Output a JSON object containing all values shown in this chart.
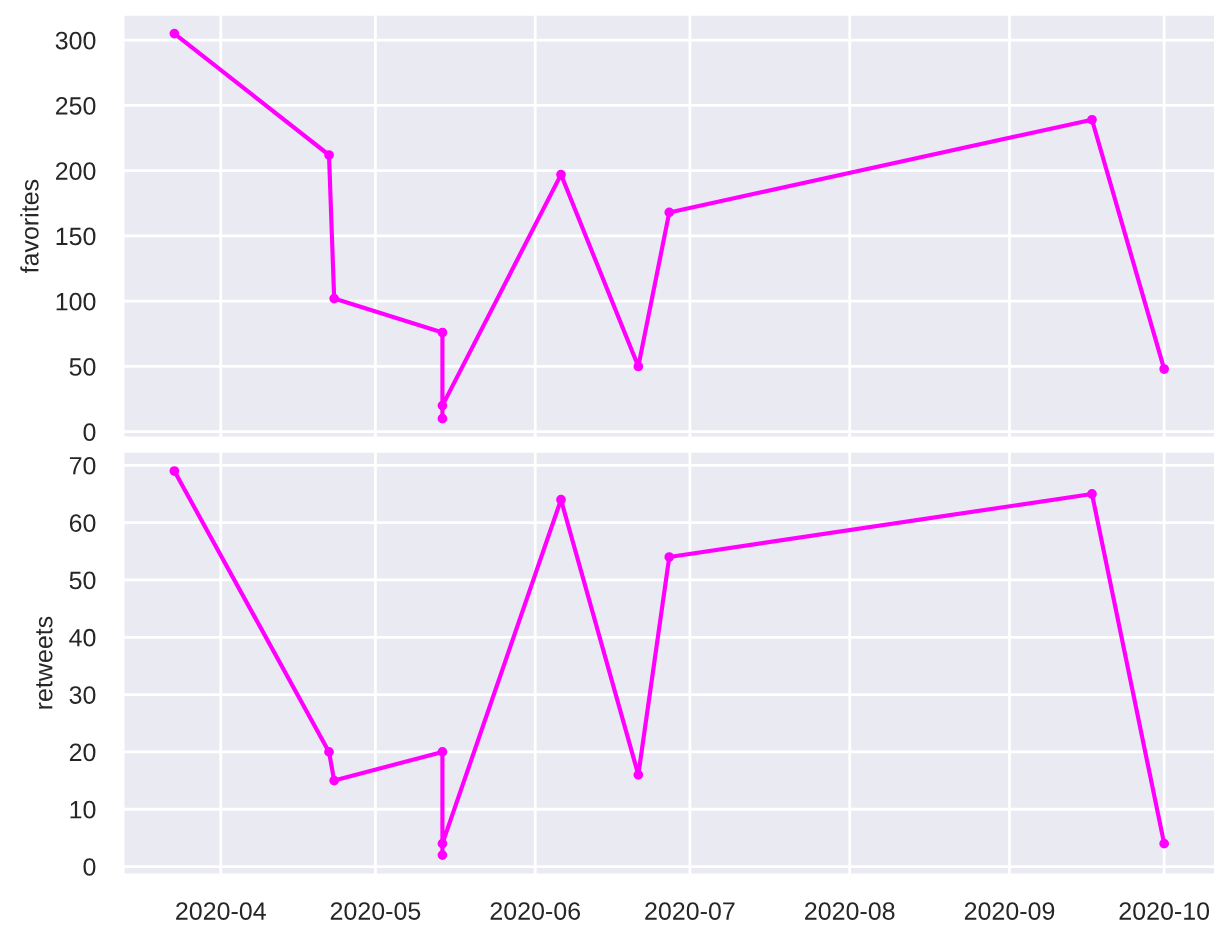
{
  "chart_data": [
    {
      "type": "line",
      "ylabel": "favorites",
      "x": [
        "2020-03-23",
        "2020-04-22",
        "2020-04-23",
        "2020-05-14",
        "2020-05-14",
        "2020-05-14",
        "2020-06-06",
        "2020-06-21",
        "2020-06-27",
        "2020-09-17",
        "2020-10-01"
      ],
      "series": [
        {
          "color": "#ff00ff",
          "values": [
            305,
            212,
            102,
            76,
            10,
            20,
            197,
            50,
            168,
            239,
            48
          ]
        }
      ],
      "xlim": [
        "2020-03-13",
        "2020-10-11"
      ],
      "xticks": [
        {
          "value": "2020-04-01",
          "label": null
        },
        {
          "value": "2020-05-01",
          "label": null
        },
        {
          "value": "2020-06-01",
          "label": null
        },
        {
          "value": "2020-07-01",
          "label": null
        },
        {
          "value": "2020-08-01",
          "label": null
        },
        {
          "value": "2020-09-01",
          "label": null
        },
        {
          "value": "2020-10-01",
          "label": null
        }
      ],
      "ylim": [
        -5,
        320
      ],
      "yticks": [
        0,
        50,
        100,
        150,
        200,
        250,
        300
      ],
      "tick_labels": "y",
      "grid": true,
      "marker": "circle",
      "line_style": "solid",
      "legend": false
    },
    {
      "type": "line",
      "ylabel": "retweets",
      "x": [
        "2020-03-23",
        "2020-04-22",
        "2020-04-23",
        "2020-05-14",
        "2020-05-14",
        "2020-05-14",
        "2020-06-06",
        "2020-06-21",
        "2020-06-27",
        "2020-09-17",
        "2020-10-01"
      ],
      "series": [
        {
          "color": "#ff00ff",
          "values": [
            69,
            20,
            15,
            20,
            2,
            4,
            64,
            16,
            54,
            65,
            4
          ]
        }
      ],
      "xlim": [
        "2020-03-13",
        "2020-10-11"
      ],
      "xticks": [
        {
          "value": "2020-04-01",
          "label": "2020-04"
        },
        {
          "value": "2020-05-01",
          "label": "2020-05"
        },
        {
          "value": "2020-06-01",
          "label": "2020-06"
        },
        {
          "value": "2020-07-01",
          "label": "2020-07"
        },
        {
          "value": "2020-08-01",
          "label": "2020-08"
        },
        {
          "value": "2020-09-01",
          "label": "2020-09"
        },
        {
          "value": "2020-10-01",
          "label": "2020-10"
        }
      ],
      "ylim": [
        -1.5,
        72.5
      ],
      "yticks": [
        0,
        10,
        20,
        30,
        40,
        50,
        60,
        70
      ],
      "grid": true,
      "marker": "circle",
      "line_style": "solid",
      "legend": false
    }
  ]
}
